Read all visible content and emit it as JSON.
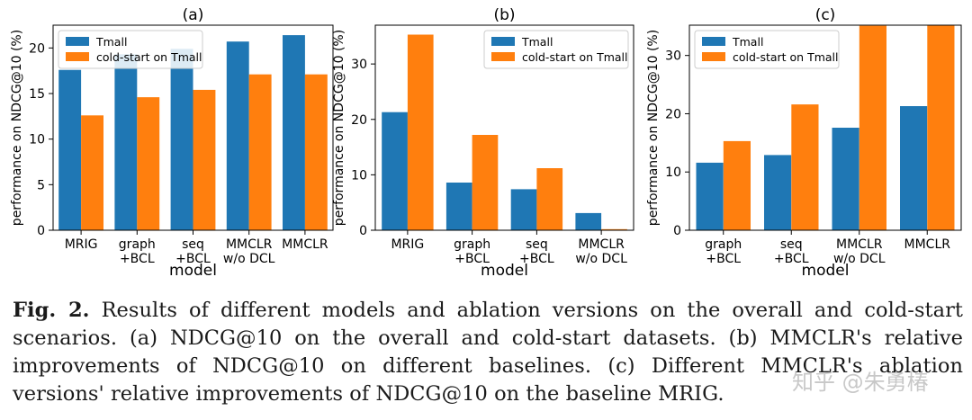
{
  "chart_data": [
    {
      "type": "bar",
      "panel": "(a)",
      "title": "(a)",
      "ylabel": "performance on NDCG@10 (%)",
      "xlabel": "model",
      "categories": [
        [
          "MRIG"
        ],
        [
          "graph",
          "+BCL"
        ],
        [
          "seq",
          "+BCL"
        ],
        [
          "MMCLR",
          "w/o DCL"
        ],
        [
          "MMCLR"
        ]
      ],
      "series": [
        {
          "name": "Tmall",
          "color": "#1f77b4",
          "values": [
            17.6,
            19.3,
            19.9,
            20.7,
            21.4
          ]
        },
        {
          "name": "cold-start on Tmall",
          "color": "#ff7f0e",
          "values": [
            12.6,
            14.6,
            15.4,
            17.1,
            17.1
          ]
        }
      ],
      "ylim": [
        0,
        22.5
      ],
      "yticks": [
        0,
        5,
        10,
        15,
        20
      ],
      "legend": "top-left"
    },
    {
      "type": "bar",
      "panel": "(b)",
      "title": "(b)",
      "ylabel": "performance on NDCG@10 (%)",
      "xlabel": "model",
      "categories": [
        [
          "MRIG"
        ],
        [
          "graph",
          "+BCL"
        ],
        [
          "seq",
          "+BCL"
        ],
        [
          "MMCLR",
          "w/o DCL"
        ]
      ],
      "series": [
        {
          "name": "Tmall",
          "color": "#1f77b4",
          "values": [
            21.3,
            8.6,
            7.4,
            3.1
          ]
        },
        {
          "name": "cold-start on Tmall",
          "color": "#ff7f0e",
          "values": [
            35.3,
            17.2,
            11.2,
            0.2
          ]
        }
      ],
      "ylim": [
        0,
        37
      ],
      "yticks": [
        0,
        10,
        20,
        30
      ],
      "legend": "top-right"
    },
    {
      "type": "bar",
      "panel": "(c)",
      "title": "(c)",
      "ylabel": "performance on NDCG@10 (%)",
      "xlabel": "model",
      "categories": [
        [
          "graph",
          "+BCL"
        ],
        [
          "seq",
          "+BCL"
        ],
        [
          "MMCLR",
          "w/o DCL"
        ],
        [
          "MMCLR"
        ]
      ],
      "series": [
        {
          "name": "Tmall",
          "color": "#1f77b4",
          "values": [
            11.6,
            12.9,
            17.6,
            21.3
          ]
        },
        {
          "name": "cold-start on Tmall",
          "color": "#ff7f0e",
          "values": [
            15.3,
            21.6,
            35.1,
            35.3
          ]
        }
      ],
      "ylim": [
        0,
        35.2
      ],
      "yticks": [
        0,
        10,
        20,
        30
      ],
      "legend": "top-left"
    }
  ],
  "caption": {
    "label": "Fig. 2.",
    "text": "Results of different models and ablation versions on the overall and cold-start scenarios. (a) NDCG@10 on the overall and cold-start datasets. (b) MMCLR's relative improvements of NDCG@10 on different baselines. (c) Different MMCLR's ablation versions' relative improvements of NDCG@10 on the baseline MRIG."
  },
  "watermark": "知乎 @朱勇椿"
}
